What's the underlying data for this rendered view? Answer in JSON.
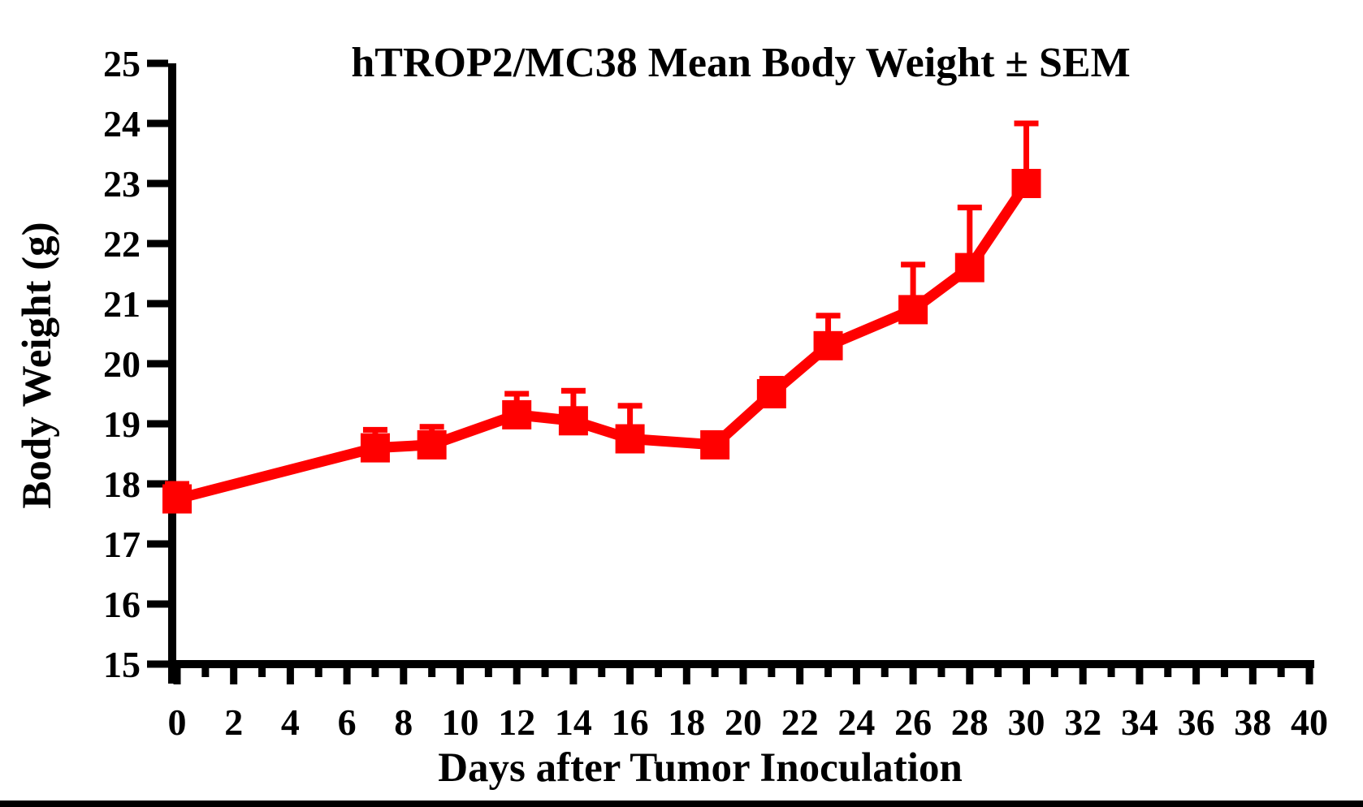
{
  "figure": {
    "background_color": "#ffffff",
    "bottom_bar_color": "#000000",
    "axis_color": "#000000"
  },
  "chart_data": {
    "type": "line",
    "title": "hTROP2/MC38 Mean Body Weight ± SEM",
    "xlabel": "Days after Tumor Inoculation",
    "ylabel": "Body Weight (g)",
    "series": [
      {
        "name": "hTROP2/MC38 mean body weight",
        "color": "#ff0000",
        "marker": "square",
        "error_bars": "upper",
        "points": [
          {
            "day": 0,
            "mean": 17.75,
            "sem": 0.25
          },
          {
            "day": 7,
            "mean": 18.6,
            "sem": 0.3
          },
          {
            "day": 9,
            "mean": 18.65,
            "sem": 0.3
          },
          {
            "day": 12,
            "mean": 19.15,
            "sem": 0.35
          },
          {
            "day": 14,
            "mean": 19.05,
            "sem": 0.5
          },
          {
            "day": 16,
            "mean": 18.75,
            "sem": 0.55
          },
          {
            "day": 19,
            "mean": 18.65,
            "sem": 0.1
          },
          {
            "day": 21,
            "mean": 19.5,
            "sem": 0.25
          },
          {
            "day": 23,
            "mean": 20.3,
            "sem": 0.5
          },
          {
            "day": 26,
            "mean": 20.9,
            "sem": 0.75
          },
          {
            "day": 28,
            "mean": 21.6,
            "sem": 1.0
          },
          {
            "day": 30,
            "mean": 23.0,
            "sem": 1.0
          }
        ]
      }
    ],
    "xlim": [
      0,
      40
    ],
    "ylim": [
      15,
      25
    ],
    "x_major_step": 2,
    "x_minor_step": 1,
    "y_major_step": 1,
    "x_tick_labels": [
      "0",
      "2",
      "4",
      "6",
      "8",
      "10",
      "12",
      "14",
      "16",
      "18",
      "20",
      "22",
      "24",
      "26",
      "28",
      "30",
      "32",
      "34",
      "36",
      "38",
      "40"
    ],
    "y_tick_labels": [
      "15",
      "16",
      "17",
      "18",
      "19",
      "20",
      "21",
      "22",
      "23",
      "24",
      "25"
    ],
    "grid": false,
    "legend": "none"
  }
}
